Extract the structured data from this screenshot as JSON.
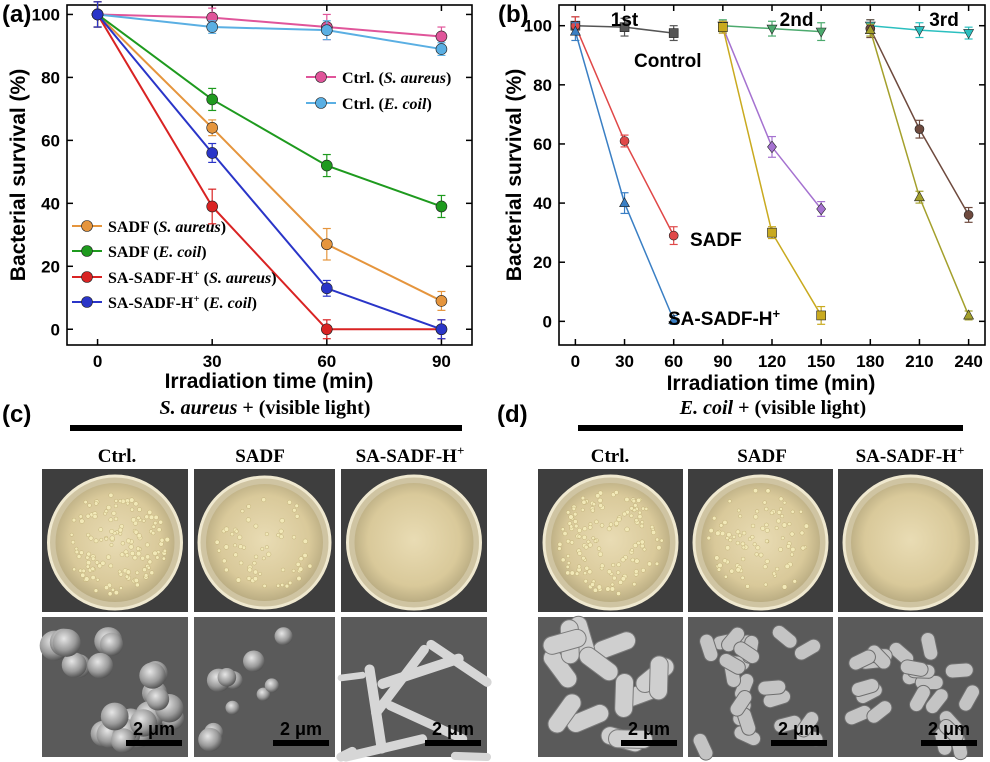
{
  "panel_letters": {
    "a": "(a)",
    "b": "(b)",
    "c": "(c)",
    "d": "(d)"
  },
  "chart_data": [
    {
      "type": "line",
      "panel": "(a)",
      "xlabel": "Irradiation time (min)",
      "ylabel": "Bacterial survival (%)",
      "xlim": [
        -8,
        98
      ],
      "ylim": [
        -5,
        103
      ],
      "x_ticks": [
        0,
        30,
        60,
        90
      ],
      "y_ticks": [
        0,
        20,
        40,
        60,
        80,
        100
      ],
      "grid": false,
      "legends": [
        {
          "placement": "top-right",
          "series_indices": [
            0,
            1
          ]
        },
        {
          "placement": "bottom-left",
          "series_indices": [
            2,
            3,
            4,
            5
          ]
        }
      ],
      "series": [
        {
          "name_plain": "Ctrl.",
          "name_italic": "S. aureus",
          "color": "#e0559a",
          "x": [
            0,
            30,
            60,
            90
          ],
          "values": [
            100,
            99,
            96,
            93
          ],
          "err": [
            4,
            3,
            4,
            3
          ]
        },
        {
          "name_plain": "Ctrl.",
          "name_italic": "E. coil",
          "color": "#5aafe3",
          "x": [
            0,
            30,
            60,
            90
          ],
          "values": [
            100,
            96,
            95,
            89
          ],
          "err": [
            4,
            2,
            3,
            2
          ]
        },
        {
          "name_plain": "SADF",
          "name_italic": "S. aureus",
          "color": "#e5953d",
          "x": [
            0,
            30,
            60,
            90
          ],
          "values": [
            100,
            64,
            27,
            9
          ],
          "err": [
            4,
            2.5,
            5,
            3
          ]
        },
        {
          "name_plain": "SADF",
          "name_italic": "E. coil",
          "color": "#1e9a1e",
          "x": [
            0,
            30,
            60,
            90
          ],
          "values": [
            100,
            73,
            52,
            39
          ],
          "err": [
            4,
            3.5,
            3.5,
            3.5
          ]
        },
        {
          "name_plain": "SA-SADF-H",
          "name_sup": "+",
          "name_italic": "S. aureus",
          "color": "#d92323",
          "x": [
            0,
            30,
            60,
            90
          ],
          "values": [
            100,
            39,
            0,
            0
          ],
          "err": [
            4,
            5.5,
            3,
            3
          ]
        },
        {
          "name_plain": "SA-SADF-H",
          "name_sup": "+",
          "name_italic": "E. coil",
          "color": "#2a35c8",
          "x": [
            0,
            30,
            60,
            90
          ],
          "values": [
            100,
            56,
            13,
            0
          ],
          "err": [
            4,
            3,
            2.5,
            3
          ]
        }
      ]
    },
    {
      "type": "line",
      "panel": "(b)",
      "xlabel": "Irradiation time (min)",
      "ylabel": "Bacterial survival (%)",
      "xlim": [
        -10,
        250
      ],
      "ylim": [
        -8,
        107
      ],
      "x_ticks": [
        0,
        30,
        60,
        90,
        120,
        150,
        180,
        210,
        240
      ],
      "y_ticks": [
        0,
        20,
        40,
        60,
        80,
        100
      ],
      "grid": false,
      "cycle_labels": [
        {
          "text": "1st",
          "x": 30
        },
        {
          "text": "2nd",
          "x": 135
        },
        {
          "text": "3rd",
          "x": 225
        }
      ],
      "annotations": [
        {
          "text": "Control",
          "near_series": 0
        },
        {
          "text": "SADF",
          "near_series": 1
        },
        {
          "text": "SA-SADF-H",
          "sup": "+",
          "near_series": 2
        }
      ],
      "series": [
        {
          "group": "Control",
          "cycle": 1,
          "marker": "square",
          "color": "#555555",
          "x": [
            0,
            30,
            60
          ],
          "values": [
            100,
            99.5,
            97.5
          ],
          "err": [
            3,
            3,
            2.5
          ]
        },
        {
          "group": "SADF",
          "cycle": 1,
          "marker": "circle",
          "color": "#e04848",
          "x": [
            0,
            30,
            60
          ],
          "values": [
            100,
            61,
            29
          ],
          "err": [
            3,
            2,
            3
          ]
        },
        {
          "group": "SA-SADF-H+",
          "cycle": 1,
          "marker": "triangle",
          "color": "#3a7fc4",
          "x": [
            0,
            30,
            60
          ],
          "values": [
            98,
            40,
            0.5
          ],
          "err": [
            3,
            3.5,
            1.5
          ]
        },
        {
          "group": "Control",
          "cycle": 2,
          "marker": "triangle-down",
          "color": "#4caa6e",
          "x": [
            90,
            120,
            150
          ],
          "values": [
            100,
            99,
            98
          ],
          "err": [
            2,
            2.5,
            3
          ]
        },
        {
          "group": "SADF",
          "cycle": 2,
          "marker": "diamond",
          "color": "#a572d0",
          "x": [
            90,
            120,
            150
          ],
          "values": [
            99.5,
            59,
            38
          ],
          "err": [
            2,
            3.5,
            2.5
          ]
        },
        {
          "group": "SA-SADF-H+",
          "cycle": 2,
          "marker": "square",
          "color": "#c9aa1f",
          "x": [
            90,
            120,
            150
          ],
          "values": [
            99.5,
            30,
            2
          ],
          "err": [
            2,
            2,
            3
          ]
        },
        {
          "group": "Control",
          "cycle": 3,
          "marker": "triangle-down",
          "color": "#2bbfbf",
          "x": [
            180,
            210,
            240
          ],
          "values": [
            100,
            98.5,
            97.5
          ],
          "err": [
            2,
            2.5,
            2
          ]
        },
        {
          "group": "SADF",
          "cycle": 3,
          "marker": "circle",
          "color": "#6e4a3e",
          "x": [
            180,
            210,
            240
          ],
          "values": [
            99,
            65,
            36
          ],
          "err": [
            3,
            3,
            2.5
          ]
        },
        {
          "group": "SA-SADF-H+",
          "cycle": 3,
          "marker": "triangle",
          "color": "#a4a02c",
          "x": [
            180,
            210,
            240
          ],
          "values": [
            98.5,
            42,
            2
          ],
          "err": [
            2,
            2,
            1.5
          ]
        }
      ]
    }
  ],
  "photo_panels": [
    {
      "panel": "(c)",
      "header_italic": "S. aureus",
      "header_plain": " + (visible light)",
      "columns": [
        {
          "label": "Ctrl."
        },
        {
          "label": "SADF"
        },
        {
          "label": "SA-SADF-H",
          "sup": "+"
        }
      ],
      "scale_bar": "2 μm"
    },
    {
      "panel": "(d)",
      "header_italic": "E. coil",
      "header_plain": " + (visible light)",
      "columns": [
        {
          "label": "Ctrl."
        },
        {
          "label": "SADF"
        },
        {
          "label": "SA-SADF-H",
          "sup": "+"
        }
      ],
      "scale_bar": "2 μm"
    }
  ]
}
